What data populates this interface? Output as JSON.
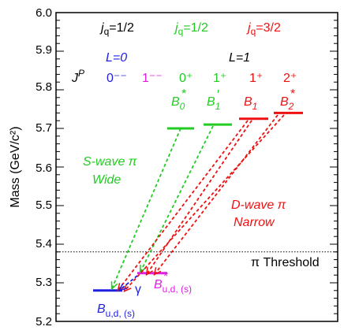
{
  "axis": {
    "title": "Mass (GeV/c²)",
    "ticks": [
      "6.0",
      "5.9",
      "5.8",
      "5.7",
      "5.6",
      "5.5",
      "5.4",
      "5.3",
      "5.2"
    ]
  },
  "header": {
    "jq_half_black": "j",
    "jq_sub": "q",
    "jq_half_value": "=1/2",
    "jq_half_green_value": "=1/2",
    "jq_threehalf_value": "=3/2",
    "L0": "L=0",
    "L1": "L=1",
    "JP_J": "J",
    "JP_P": "P"
  },
  "states": {
    "0minus": "0⁻⁻",
    "1minus": "1⁻⁻",
    "0plus": "0⁺",
    "1plus_green": "1⁺",
    "1plus_red": "1⁺",
    "2plus": "2⁺"
  },
  "particles": {
    "B0star": "B",
    "B0star_sub": "0",
    "B1prime": "B",
    "B1prime_sub": "1",
    "B1": "B",
    "B1_sub": "1",
    "B2star": "B",
    "B2star_sub": "2",
    "B_ground": "B",
    "B_ground_sub": "u,d, (s)",
    "Bstar_ground": "B",
    "Bstar_ground_sub": "u,d, (s)"
  },
  "annotations": {
    "swave_1": "S-wave π",
    "swave_2": "Wide",
    "dwave_1": "D-wave π",
    "dwave_2": "Narrow",
    "gamma": "γ",
    "threshold": "π Threshold"
  },
  "colors": {
    "black": "#000000",
    "blue": "#1f1fe0",
    "magenta": "#e020e0",
    "green": "#22cc22",
    "red": "#ee1111"
  },
  "levels": {
    "B": 5.28,
    "Bstar": 5.325,
    "B0star": 5.7,
    "B1prime": 5.71,
    "B1": 5.725,
    "B2star": 5.74,
    "threshold": 5.38
  }
}
